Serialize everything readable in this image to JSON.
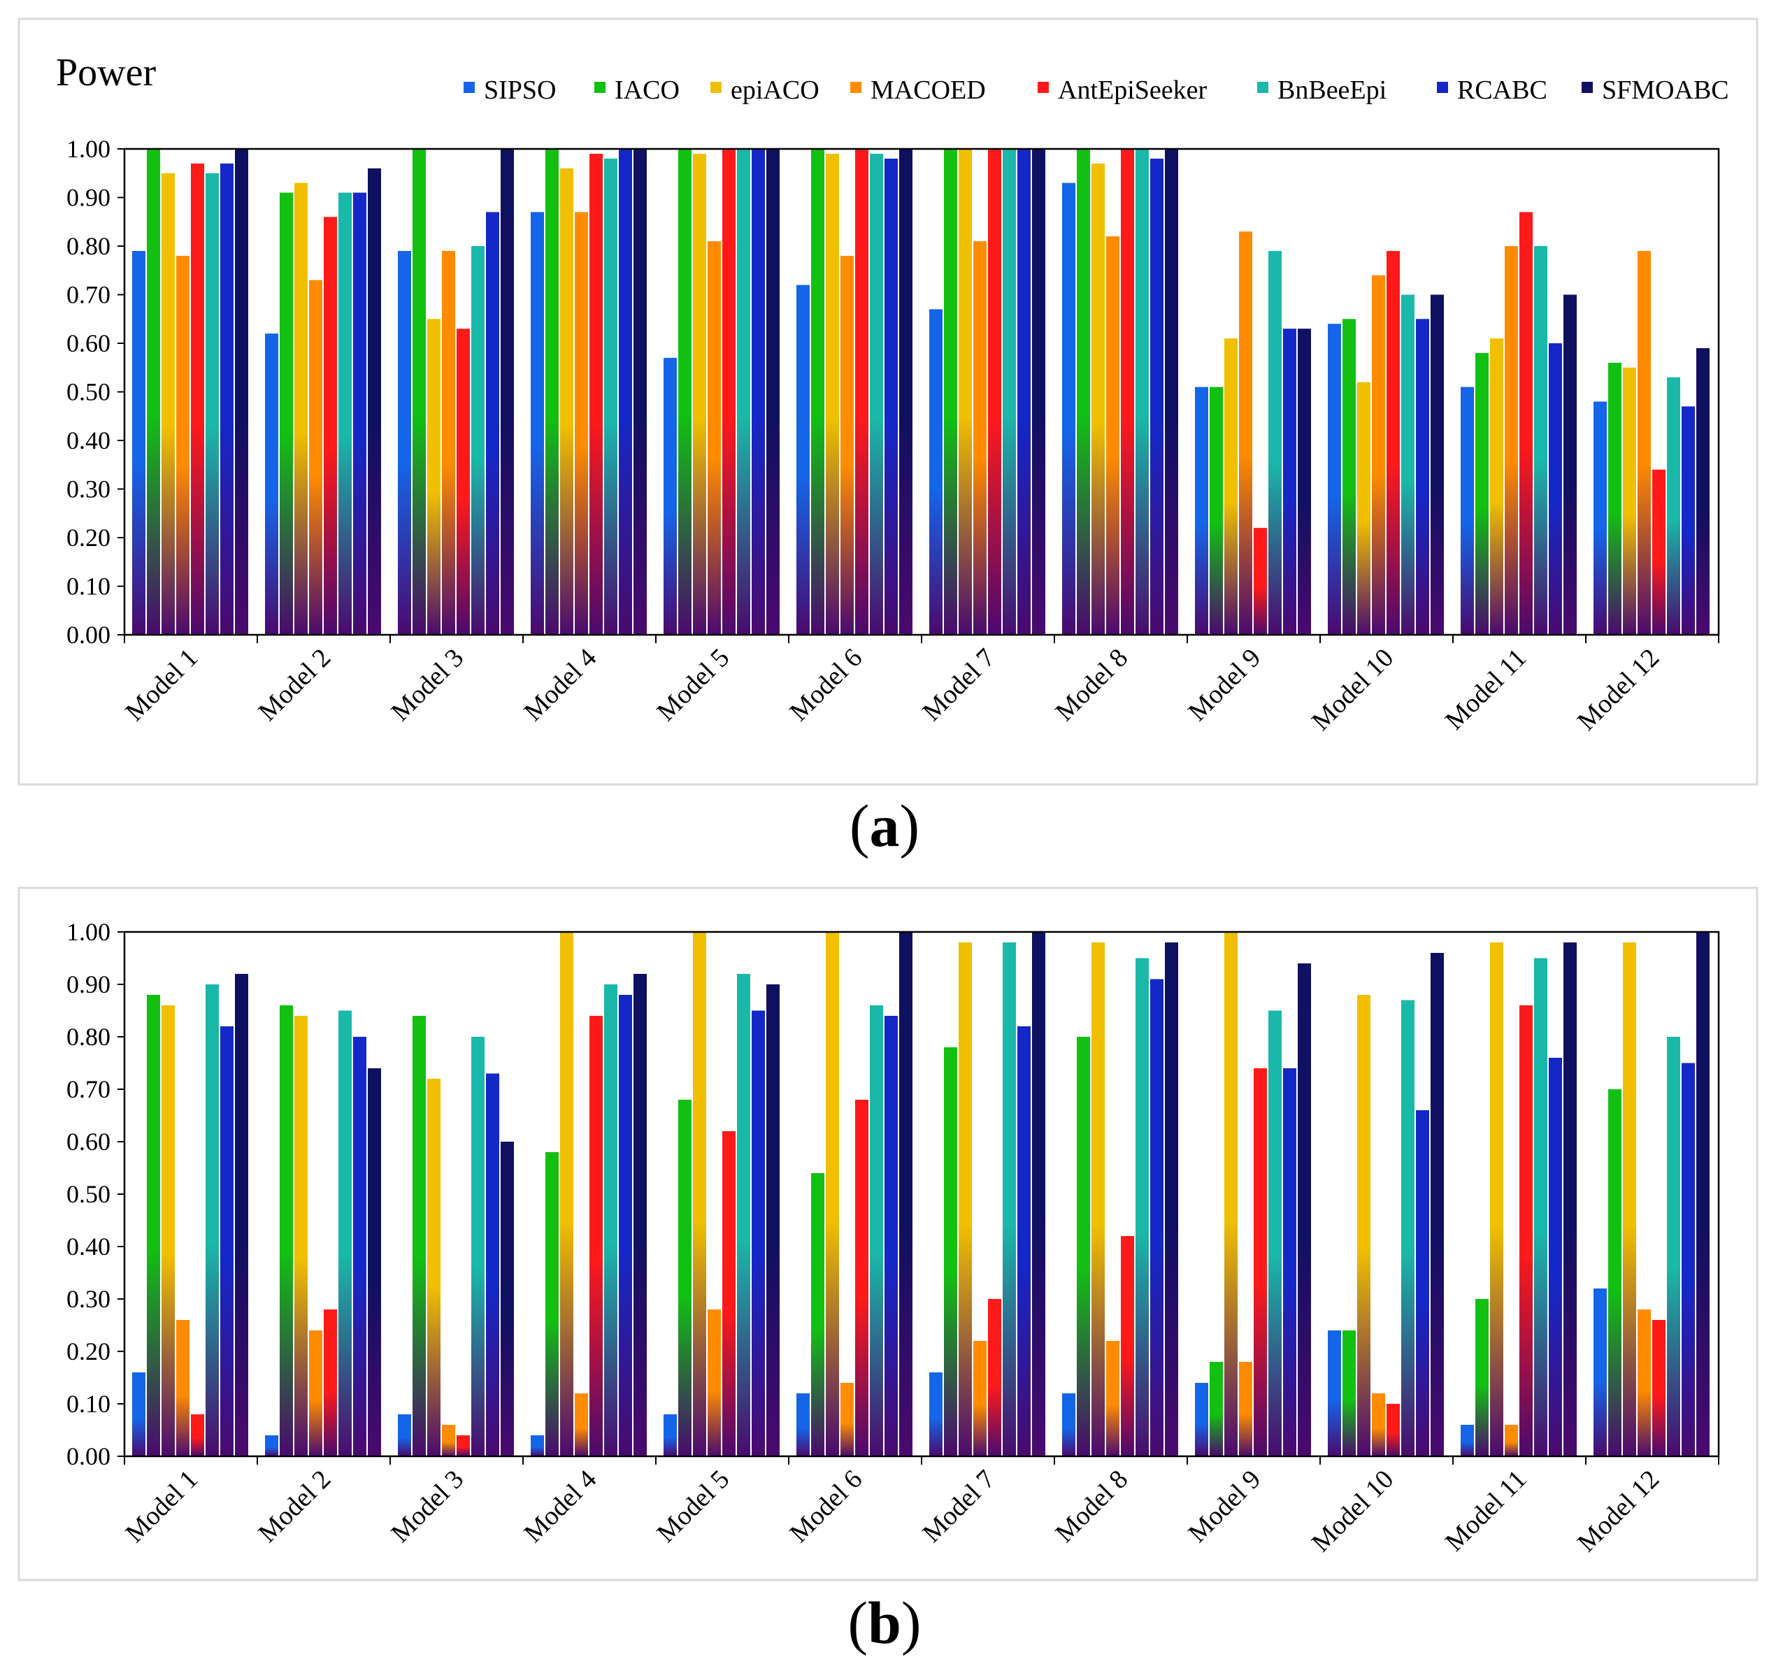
{
  "colors": [
    "#1565e8",
    "#12c012",
    "#f0c000",
    "#ff8c00",
    "#ff1a1a",
    "#1ab8a8",
    "#1428c8",
    "#101060"
  ],
  "chart_data": [
    {
      "type": "bar",
      "title": "Power",
      "caption_open": "(",
      "caption_letter": "a",
      "caption_close": ")",
      "categories": [
        "Model 1",
        "Model 2",
        "Model 3",
        "Model 4",
        "Model 5",
        "Model 6",
        "Model 7",
        "Model 8",
        "Model 9",
        "Model 10",
        "Model 11",
        "Model 12"
      ],
      "ylim": [
        0,
        1
      ],
      "yticks": [
        "0.00",
        "0.10",
        "0.20",
        "0.30",
        "0.40",
        "0.50",
        "0.60",
        "0.70",
        "0.80",
        "0.90",
        "1.00"
      ],
      "legend_position": "top",
      "series": [
        {
          "name": "SIPSO",
          "values": [
            0.79,
            0.62,
            0.79,
            0.87,
            0.57,
            0.72,
            0.67,
            0.93,
            0.51,
            0.64,
            0.51,
            0.48
          ]
        },
        {
          "name": "IACO",
          "values": [
            1.0,
            0.91,
            1.0,
            1.0,
            1.0,
            1.0,
            1.0,
            1.0,
            0.51,
            0.65,
            0.58,
            0.56
          ]
        },
        {
          "name": "epiACO",
          "values": [
            0.95,
            0.93,
            0.65,
            0.96,
            0.99,
            0.99,
            1.0,
            0.97,
            0.61,
            0.52,
            0.61,
            0.55
          ]
        },
        {
          "name": "MACOED",
          "values": [
            0.78,
            0.73,
            0.79,
            0.87,
            0.81,
            0.78,
            0.81,
            0.82,
            0.83,
            0.74,
            0.8,
            0.79
          ]
        },
        {
          "name": "AntEpiSeeker",
          "values": [
            0.97,
            0.86,
            0.63,
            0.99,
            1.0,
            1.0,
            1.0,
            1.0,
            0.22,
            0.79,
            0.87,
            0.34
          ]
        },
        {
          "name": "BnBeeEpi",
          "values": [
            0.95,
            0.91,
            0.8,
            0.98,
            1.0,
            0.99,
            1.0,
            1.0,
            0.79,
            0.7,
            0.8,
            0.53
          ]
        },
        {
          "name": "RCABC",
          "values": [
            0.97,
            0.91,
            0.87,
            1.0,
            1.0,
            0.98,
            1.0,
            0.98,
            0.63,
            0.65,
            0.6,
            0.47
          ]
        },
        {
          "name": "SFMOABC",
          "values": [
            1.0,
            0.96,
            1.0,
            1.0,
            1.0,
            1.0,
            1.0,
            1.0,
            0.63,
            0.7,
            0.7,
            0.59
          ]
        }
      ]
    },
    {
      "type": "bar",
      "title": "",
      "caption_open": "(",
      "caption_letter": "b",
      "caption_close": ")",
      "categories": [
        "Model 1",
        "Model 2",
        "Model 3",
        "Model 4",
        "Model 5",
        "Model 6",
        "Model 7",
        "Model 8",
        "Model 9",
        "Model 10",
        "Model 11",
        "Model 12"
      ],
      "ylim": [
        0,
        1
      ],
      "yticks": [
        "0.00",
        "0.10",
        "0.20",
        "0.30",
        "0.40",
        "0.50",
        "0.60",
        "0.70",
        "0.80",
        "0.90",
        "1.00"
      ],
      "series": [
        {
          "name": "SIPSO",
          "values": [
            0.16,
            0.04,
            0.08,
            0.04,
            0.08,
            0.12,
            0.16,
            0.12,
            0.14,
            0.24,
            0.06,
            0.32
          ]
        },
        {
          "name": "IACO",
          "values": [
            0.88,
            0.86,
            0.84,
            0.58,
            0.68,
            0.54,
            0.78,
            0.8,
            0.18,
            0.24,
            0.3,
            0.7
          ]
        },
        {
          "name": "epiACO",
          "values": [
            0.86,
            0.84,
            0.72,
            1.0,
            1.0,
            1.0,
            0.98,
            0.98,
            1.0,
            0.88,
            0.98,
            0.98
          ]
        },
        {
          "name": "MACOED",
          "values": [
            0.26,
            0.24,
            0.06,
            0.12,
            0.28,
            0.14,
            0.22,
            0.22,
            0.18,
            0.12,
            0.06,
            0.28
          ]
        },
        {
          "name": "AntEpiSeeker",
          "values": [
            0.08,
            0.28,
            0.04,
            0.84,
            0.62,
            0.68,
            0.3,
            0.42,
            0.74,
            0.1,
            0.86,
            0.26
          ]
        },
        {
          "name": "BnBeeEpi",
          "values": [
            0.9,
            0.85,
            0.8,
            0.9,
            0.92,
            0.86,
            0.98,
            0.95,
            0.85,
            0.87,
            0.95,
            0.8
          ]
        },
        {
          "name": "RCABC",
          "values": [
            0.82,
            0.8,
            0.73,
            0.88,
            0.85,
            0.84,
            0.82,
            0.91,
            0.74,
            0.66,
            0.76,
            0.75
          ]
        },
        {
          "name": "SFMOABC",
          "values": [
            0.92,
            0.74,
            0.6,
            0.92,
            0.9,
            1.0,
            1.0,
            0.98,
            0.94,
            0.96,
            0.98,
            1.0
          ]
        }
      ]
    }
  ]
}
